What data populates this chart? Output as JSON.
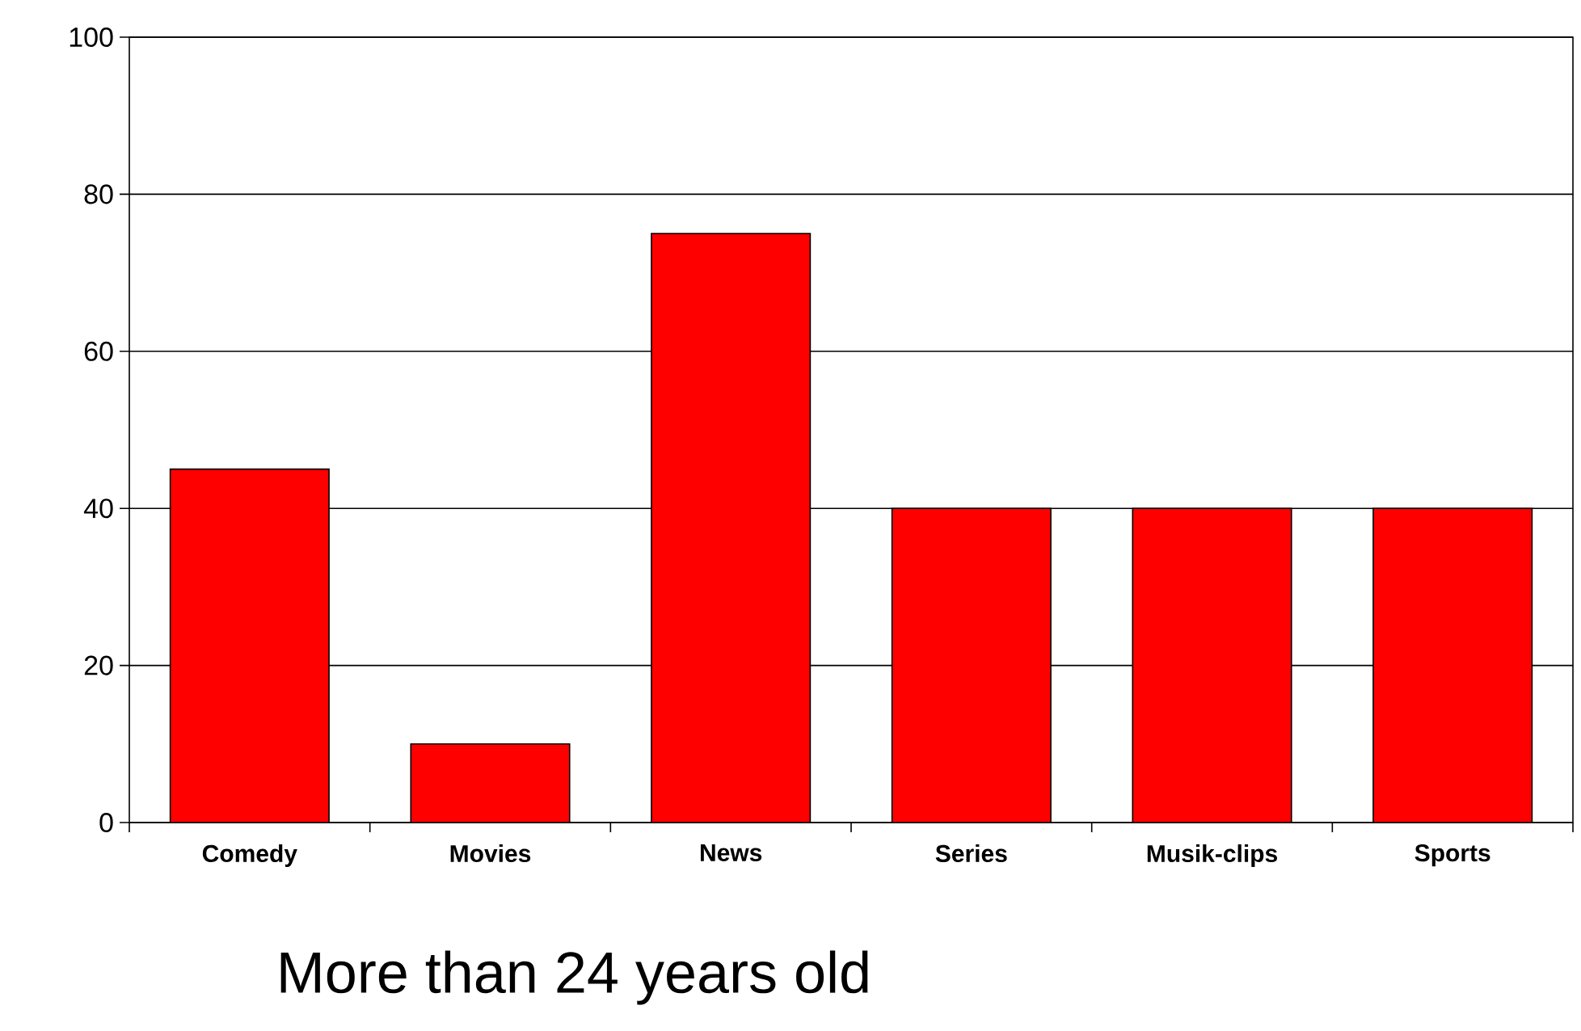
{
  "chart_data": {
    "type": "bar",
    "title": "More than 24 years old",
    "categories": [
      "Comedy",
      "Movies",
      "News",
      "Series",
      "Musik-clips",
      "Sports"
    ],
    "values": [
      45,
      10,
      75,
      40,
      40,
      40
    ],
    "color": "#ff0000",
    "ylim": [
      0,
      100
    ],
    "yticks": [
      0,
      20,
      40,
      60,
      80,
      100
    ],
    "grid": "y"
  }
}
